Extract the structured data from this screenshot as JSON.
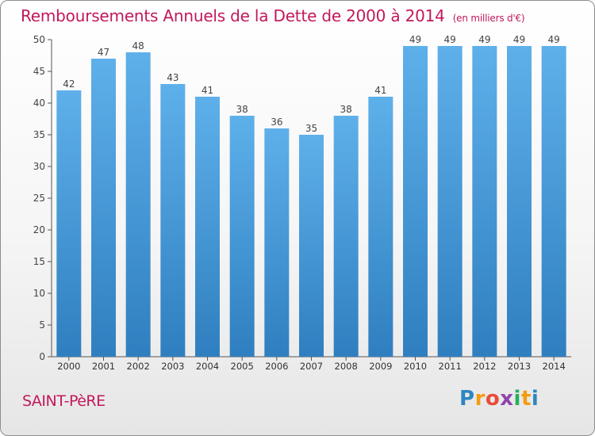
{
  "title": "Remboursements Annuels de la Dette de 2000 à 2014",
  "subtitle": "(en milliers d'€)",
  "commune": "SAINT-PèRE",
  "logo": {
    "letters": [
      "P",
      "r",
      "o",
      "x",
      "i",
      "t",
      "i"
    ],
    "colors": [
      "#2e86c1",
      "#f39c12",
      "#e74c3c",
      "#8e44ad",
      "#27ae60",
      "#f39c12",
      "#2e86c1"
    ]
  },
  "colors": {
    "bar": "#3d8fd1",
    "bar_light": "#5eb0ea",
    "text": "#c2185b"
  },
  "chart_data": {
    "type": "bar",
    "title": "Remboursements Annuels de la Dette de 2000 à 2014",
    "subtitle": "(en milliers d'€)",
    "categories": [
      "2000",
      "2001",
      "2002",
      "2003",
      "2004",
      "2005",
      "2006",
      "2007",
      "2008",
      "2009",
      "2010",
      "2011",
      "2012",
      "2013",
      "2014"
    ],
    "values": [
      42,
      47,
      48,
      43,
      41,
      38,
      36,
      35,
      38,
      41,
      49,
      49,
      49,
      49,
      49
    ],
    "ylim": [
      0,
      50
    ],
    "yticks": [
      0,
      5,
      10,
      15,
      20,
      25,
      30,
      35,
      40,
      45,
      50
    ],
    "xlabel": "",
    "ylabel": "",
    "grid": false,
    "data_labels": true
  }
}
